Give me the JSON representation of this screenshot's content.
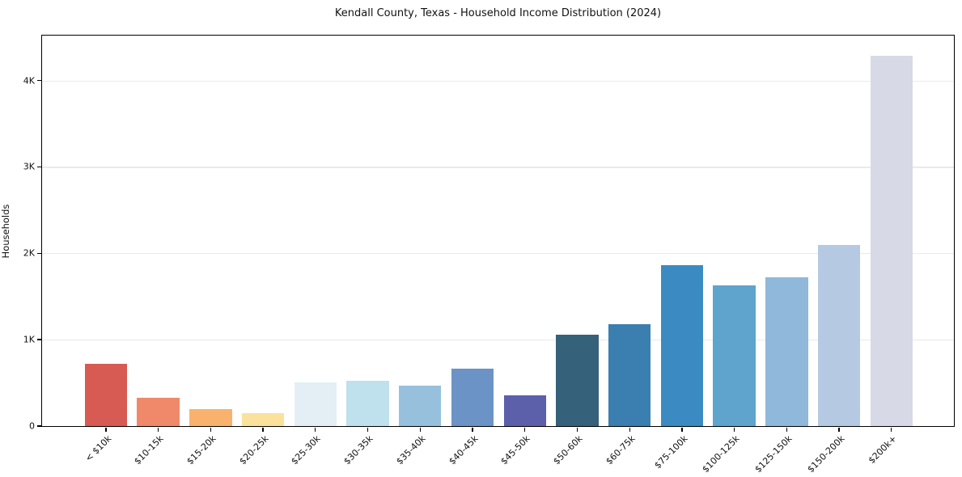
{
  "chart_data": {
    "type": "bar",
    "title": "Kendall County, Texas - Household Income Distribution (2024)",
    "xlabel": "",
    "ylabel": "Households",
    "categories": [
      "< $10k",
      "$10-15k",
      "$15-20k",
      "$20-25k",
      "$25-30k",
      "$30-35k",
      "$35-40k",
      "$40-45k",
      "$45-50k",
      "$50-60k",
      "$60-75k",
      "$75-100k",
      "$100-125k",
      "$125-150k",
      "$150-200k",
      "$200k+"
    ],
    "values": [
      720,
      325,
      195,
      148,
      505,
      520,
      470,
      660,
      355,
      1060,
      1175,
      1860,
      1630,
      1725,
      2100,
      4285
    ],
    "bar_colors": [
      "#d75b52",
      "#f0896a",
      "#f9b26d",
      "#fbe29c",
      "#e3eff4",
      "#bfe0ed",
      "#97c0dd",
      "#6c93c5",
      "#5c5fa9",
      "#35617b",
      "#3a7fb0",
      "#3b8bc2",
      "#5ea4cd",
      "#90b8da",
      "#b6c9e2",
      "#d8d9e6"
    ],
    "ylim": [
      0,
      4520
    ],
    "yticks": [
      {
        "value": 0,
        "label": "0"
      },
      {
        "value": 1000,
        "label": "1K"
      },
      {
        "value": 2000,
        "label": "2K"
      },
      {
        "value": 3000,
        "label": "3K"
      },
      {
        "value": 4000,
        "label": "4K"
      }
    ],
    "grid": "horizontal",
    "gridline_color": "#e9e9f0",
    "frame_color": "#000000",
    "background": "#ffffff",
    "legend": "none"
  }
}
